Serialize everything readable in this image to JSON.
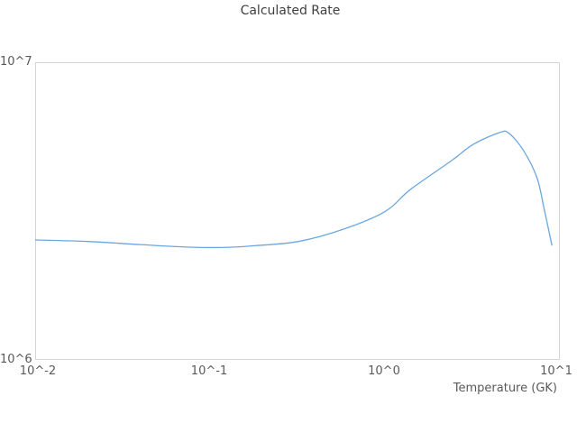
{
  "title": "Calculated Rate",
  "colors": {
    "line": "#6ca6e0",
    "plot_border": "#d5d5d5",
    "tick_text": "#595959",
    "title_text": "#3f3f3f",
    "background": "#ffffff"
  },
  "chart_data": {
    "type": "line",
    "title": "Calculated Rate",
    "xlabel": "Temperature (GK)",
    "ylabel": "",
    "x_scale": "log",
    "y_scale": "log",
    "xlim": [
      0.01,
      10
    ],
    "ylim": [
      1000000,
      10000000
    ],
    "x_ticks": [
      "10^-2",
      "10^-1",
      "10^0",
      "10^1"
    ],
    "y_ticks": [
      "10^6",
      "10^7"
    ],
    "grid": false,
    "legend": "none",
    "series": [
      {
        "name": "calculated-rate",
        "x": [
          0.01,
          0.02,
          0.04,
          0.08,
          0.13,
          0.18,
          0.32,
          0.58,
          1.0,
          1.4,
          2.4,
          3.2,
          4.5,
          5.1,
          6.2,
          7.4,
          8.1,
          9.0
        ],
        "y": [
          2530000,
          2500000,
          2440000,
          2390000,
          2390000,
          2420000,
          2500000,
          2750000,
          3150000,
          3740000,
          4670000,
          5300000,
          5800000,
          5780000,
          5050000,
          4090000,
          3250000,
          2430000
        ]
      }
    ]
  }
}
